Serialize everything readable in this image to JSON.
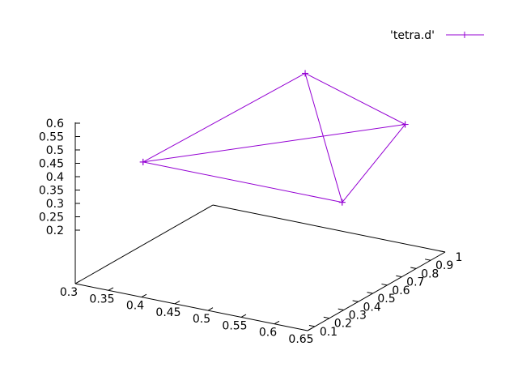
{
  "chart_data": {
    "type": "line3d",
    "title": "",
    "legend": {
      "position": "top-right",
      "entries": [
        {
          "label": "'tetra.d'",
          "color": "#9400d3",
          "marker": "plus"
        }
      ]
    },
    "axes": {
      "x": {
        "range": [
          0.3,
          0.65
        ],
        "ticks": [
          0.3,
          0.35,
          0.4,
          0.45,
          0.5,
          0.55,
          0.6,
          0.65
        ],
        "tick_labels": [
          "0.3",
          "0.35",
          "0.4",
          "0.45",
          "0.5",
          "0.55",
          "0.6",
          "0.65"
        ]
      },
      "y": {
        "range": [
          0.05,
          1.0
        ],
        "ticks": [
          0.1,
          0.2,
          0.3,
          0.4,
          0.5,
          0.6,
          0.7,
          0.8,
          0.9,
          1.0
        ],
        "tick_labels": [
          "0.1",
          "0.2",
          "0.3",
          "0.4",
          "0.5",
          "0.6",
          "0.7",
          "0.8",
          "0.9",
          "1"
        ]
      },
      "z": {
        "range": [
          0.2,
          0.6
        ],
        "ticks": [
          0.2,
          0.25,
          0.3,
          0.35,
          0.4,
          0.45,
          0.5,
          0.55,
          0.6
        ],
        "tick_labels": [
          "0.2",
          "0.25",
          "0.3",
          "0.35",
          "0.4",
          "0.45",
          "0.5",
          "0.55",
          "0.6"
        ]
      }
    },
    "series": [
      {
        "name": "'tetra.d'",
        "color": "#9400d3",
        "points": [
          {
            "x": 0.3,
            "y": 0.518,
            "z": 0.31
          },
          {
            "x": 0.45,
            "y": 0.95,
            "z": 0.5833
          },
          {
            "x": 0.6,
            "y": 0.953,
            "z": 0.4666
          },
          {
            "x": 0.3,
            "y": 0.518,
            "z": 0.31
          },
          {
            "x": 0.6,
            "y": 0.518,
            "z": 0.31
          },
          {
            "x": 0.45,
            "y": 0.95,
            "z": 0.5833
          },
          {
            "x": 0.6,
            "y": 0.518,
            "z": 0.31
          },
          {
            "x": 0.6,
            "y": 0.953,
            "z": 0.4666
          }
        ]
      }
    ]
  }
}
